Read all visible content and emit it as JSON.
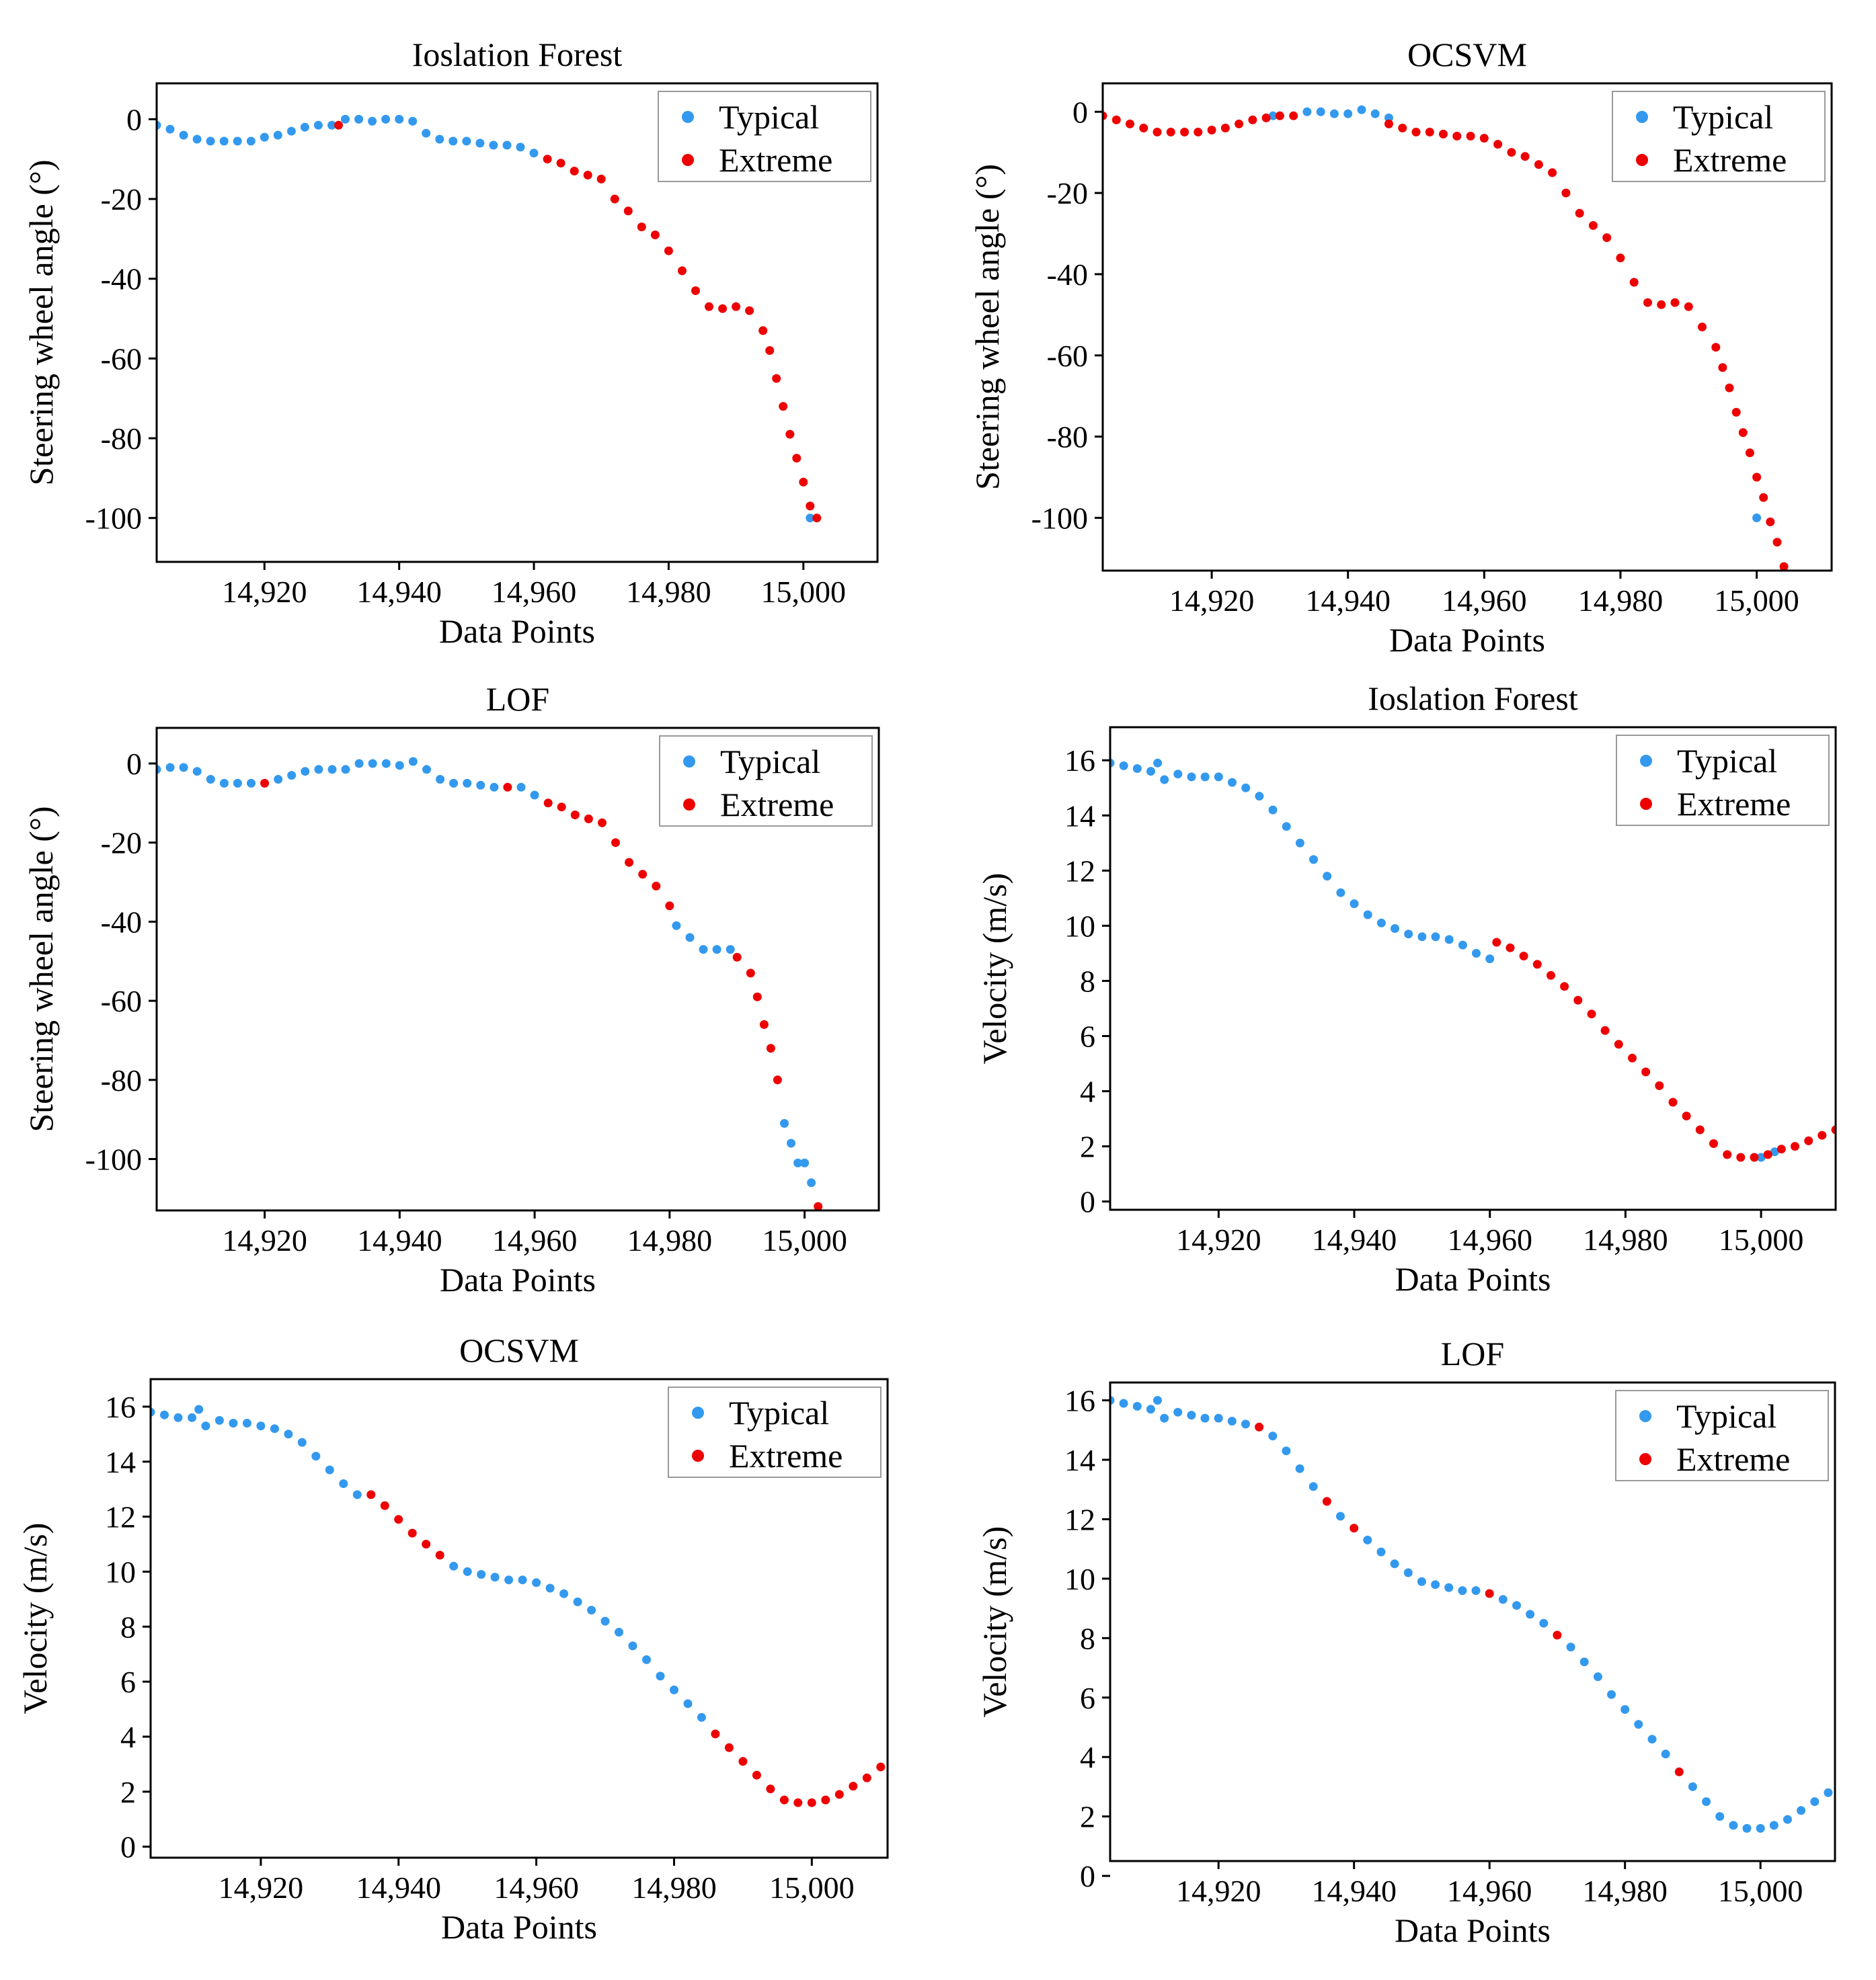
{
  "colors": {
    "typical": "#3399ee",
    "extreme": "#ee0000"
  },
  "chart_data": [
    {
      "type": "scatter",
      "title": "Ioslation Forest",
      "xlabel": "Data Points",
      "ylabel": "Steering wheel angle (°)",
      "xlim": [
        14904,
        15011
      ],
      "ylim": [
        -111,
        9
      ],
      "xticks": [
        14920,
        14940,
        14960,
        14980,
        15000
      ],
      "xtick_labels": [
        "14,920",
        "14,940",
        "14,960",
        "14,980",
        "15,000"
      ],
      "yticks": [
        0,
        -20,
        -40,
        -60,
        -80,
        -100
      ],
      "ytick_labels": [
        "0",
        "-20",
        "-40",
        "-60",
        "-80",
        "-100"
      ],
      "legend": {
        "position": "top-right",
        "entries": [
          "Typical",
          "Extreme"
        ]
      },
      "series": [
        {
          "name": "Typical",
          "x": [
            14904,
            14906,
            14908,
            14910,
            14912,
            14914,
            14916,
            14918,
            14920,
            14922,
            14924,
            14926,
            14928,
            14930,
            14932,
            14934,
            14936,
            14938,
            14940,
            14942,
            14944,
            14946,
            14948,
            14950,
            14952,
            14954,
            14956,
            14958,
            14960,
            15001
          ],
          "y": [
            -1.5,
            -2.5,
            -4,
            -5,
            -5.5,
            -5.5,
            -5.5,
            -5.5,
            -4.5,
            -4,
            -3,
            -2,
            -1.5,
            -1.5,
            0,
            0,
            -0.5,
            0,
            0,
            -0.5,
            -3.5,
            -5,
            -5.5,
            -5.5,
            -6,
            -6.5,
            -6.5,
            -7,
            -8.5,
            -100
          ]
        },
        {
          "name": "Extreme",
          "x": [
            14931,
            14962,
            14964,
            14966,
            14968,
            14970,
            14972,
            14974,
            14976,
            14978,
            14980,
            14982,
            14984,
            14986,
            14988,
            14990,
            14992,
            14994,
            14995,
            14996,
            14997,
            14998,
            14999,
            15000,
            15001,
            15002
          ],
          "y": [
            -1.5,
            -10,
            -11,
            -13,
            -14,
            -15,
            -20,
            -23,
            -27,
            -29,
            -33,
            -38,
            -43,
            -47,
            -47.5,
            -47,
            -48,
            -53,
            -58,
            -65,
            -72,
            -79,
            -85,
            -91,
            -97,
            -100
          ]
        }
      ]
    },
    {
      "type": "scatter",
      "title": "OCSVM",
      "xlabel": "Data Points",
      "ylabel": "Steering wheel angle (°)",
      "xlim": [
        14904,
        15011
      ],
      "ylim": [
        -113,
        7
      ],
      "xticks": [
        14920,
        14940,
        14960,
        14980,
        15000
      ],
      "xtick_labels": [
        "14,920",
        "14,940",
        "14,960",
        "14,980",
        "15,000"
      ],
      "yticks": [
        0,
        -20,
        -40,
        -60,
        -80,
        -100
      ],
      "ytick_labels": [
        "0",
        "-20",
        "-40",
        "-60",
        "-80",
        "-100"
      ],
      "legend": {
        "position": "top-right",
        "entries": [
          "Typical",
          "Extreme"
        ]
      },
      "series": [
        {
          "name": "Typical",
          "x": [
            14929,
            14934,
            14936,
            14938,
            14940,
            14942,
            14944,
            14946,
            15000
          ],
          "y": [
            -1,
            0,
            0,
            -0.5,
            -0.5,
            0.5,
            -0.5,
            -1.5,
            -100
          ]
        },
        {
          "name": "Extreme",
          "x": [
            14904,
            14906,
            14908,
            14910,
            14912,
            14914,
            14916,
            14918,
            14920,
            14922,
            14924,
            14926,
            14928,
            14930,
            14932,
            14946,
            14948,
            14950,
            14952,
            14954,
            14956,
            14958,
            14960,
            14962,
            14964,
            14966,
            14968,
            14970,
            14972,
            14974,
            14976,
            14978,
            14980,
            14982,
            14984,
            14986,
            14988,
            14990,
            14992,
            14994,
            14995,
            14996,
            14997,
            14998,
            14999,
            15000,
            15001,
            15002,
            15003,
            15004
          ],
          "y": [
            -1,
            -2,
            -3,
            -4,
            -5,
            -5,
            -5,
            -5,
            -4.5,
            -4,
            -3,
            -2,
            -1.5,
            -1,
            -1,
            -3,
            -4,
            -5,
            -5,
            -5.5,
            -6,
            -6,
            -6.5,
            -8,
            -10,
            -11,
            -13,
            -15,
            -20,
            -25,
            -28,
            -31,
            -36,
            -42,
            -47,
            -47.5,
            -47,
            -48,
            -53,
            -58,
            -63,
            -68,
            -74,
            -79,
            -84,
            -90,
            -95,
            -101,
            -106,
            -112
          ]
        }
      ]
    },
    {
      "type": "scatter",
      "title": "LOF",
      "xlabel": "Data Points",
      "ylabel": "Steering wheel angle (°)",
      "xlim": [
        14904,
        15011
      ],
      "ylim": [
        -113,
        9
      ],
      "xticks": [
        14920,
        14940,
        14960,
        14980,
        15000
      ],
      "xtick_labels": [
        "14,920",
        "14,940",
        "14,960",
        "14,980",
        "15,000"
      ],
      "yticks": [
        0,
        -20,
        -40,
        -60,
        -80,
        -100
      ],
      "ytick_labels": [
        "0",
        "-20",
        "-40",
        "-60",
        "-80",
        "-100"
      ],
      "legend": {
        "position": "top-right",
        "entries": [
          "Typical",
          "Extreme"
        ]
      },
      "series": [
        {
          "name": "Typical",
          "x": [
            14904,
            14906,
            14908,
            14910,
            14912,
            14914,
            14916,
            14918,
            14922,
            14924,
            14926,
            14928,
            14930,
            14932,
            14934,
            14936,
            14938,
            14940,
            14942,
            14944,
            14946,
            14948,
            14950,
            14952,
            14954,
            14958,
            14960,
            14981,
            14983,
            14985,
            14987,
            14989,
            14997,
            14998,
            14999,
            15000,
            15001
          ],
          "y": [
            -1.5,
            -1,
            -1,
            -2,
            -4,
            -5,
            -5,
            -5,
            -4,
            -3,
            -2,
            -1.5,
            -1.5,
            -1.5,
            0,
            0,
            0,
            -0.5,
            0.5,
            -1.5,
            -4,
            -5,
            -5,
            -5.5,
            -6,
            -6,
            -8,
            -41,
            -44,
            -47,
            -47,
            -47,
            -91,
            -96,
            -101,
            -101,
            -106
          ]
        },
        {
          "name": "Extreme",
          "x": [
            14920,
            14956,
            14962,
            14964,
            14966,
            14968,
            14970,
            14972,
            14974,
            14976,
            14978,
            14980,
            14990,
            14992,
            14993,
            14994,
            14995,
            14996,
            15002
          ],
          "y": [
            -5,
            -6,
            -10,
            -11,
            -13,
            -14,
            -15,
            -20,
            -25,
            -28,
            -31,
            -36,
            -49,
            -53,
            -59,
            -66,
            -72,
            -80,
            -112
          ]
        }
      ]
    },
    {
      "type": "scatter",
      "title": "Ioslation Forest",
      "xlabel": "Data Points",
      "ylabel": "Velocity (m/s)",
      "xlim": [
        14904,
        15011
      ],
      "ylim": [
        -0.3,
        17.2
      ],
      "xticks": [
        14920,
        14940,
        14960,
        14980,
        15000
      ],
      "xtick_labels": [
        "14,920",
        "14,940",
        "14,960",
        "14,980",
        "15,000"
      ],
      "yticks": [
        0,
        2,
        4,
        6,
        8,
        10,
        12,
        14,
        16
      ],
      "ytick_labels": [
        "0",
        "2",
        "4",
        "6",
        "8",
        "10",
        "12",
        "14",
        "16"
      ],
      "legend": {
        "position": "top-right",
        "entries": [
          "Typical",
          "Extreme"
        ]
      },
      "series": [
        {
          "name": "Typical",
          "x": [
            14904,
            14906,
            14908,
            14910,
            14911,
            14912,
            14914,
            14916,
            14918,
            14920,
            14922,
            14924,
            14926,
            14928,
            14930,
            14932,
            14934,
            14936,
            14938,
            14940,
            14942,
            14944,
            14946,
            14948,
            14950,
            14952,
            14954,
            14956,
            14958,
            14960,
            15000,
            15002
          ],
          "y": [
            15.9,
            15.8,
            15.7,
            15.6,
            15.9,
            15.3,
            15.5,
            15.4,
            15.4,
            15.4,
            15.2,
            15,
            14.7,
            14.2,
            13.6,
            13,
            12.4,
            11.8,
            11.2,
            10.8,
            10.4,
            10.1,
            9.9,
            9.7,
            9.6,
            9.6,
            9.5,
            9.3,
            9.0,
            8.8,
            1.6,
            1.8
          ]
        },
        {
          "name": "Extreme",
          "x": [
            14961,
            14963,
            14965,
            14967,
            14969,
            14971,
            14973,
            14975,
            14977,
            14979,
            14981,
            14983,
            14985,
            14987,
            14989,
            14991,
            14993,
            14995,
            14997,
            14999,
            15001,
            15003,
            15005,
            15007,
            15009,
            15011
          ],
          "y": [
            9.4,
            9.2,
            8.9,
            8.6,
            8.2,
            7.8,
            7.3,
            6.8,
            6.2,
            5.7,
            5.2,
            4.7,
            4.2,
            3.6,
            3.1,
            2.6,
            2.1,
            1.7,
            1.6,
            1.6,
            1.7,
            1.9,
            2.0,
            2.2,
            2.4,
            2.6
          ]
        }
      ]
    },
    {
      "type": "scatter",
      "title": "OCSVM",
      "xlabel": "Data Points",
      "ylabel": "Velocity (m/s)",
      "xlim": [
        14904,
        15011
      ],
      "ylim": [
        -0.4,
        17.0
      ],
      "xticks": [
        14920,
        14940,
        14960,
        14980,
        15000
      ],
      "xtick_labels": [
        "14,920",
        "14,940",
        "14,960",
        "14,980",
        "15,000"
      ],
      "yticks": [
        0,
        2,
        4,
        6,
        8,
        10,
        12,
        14,
        16
      ],
      "ytick_labels": [
        "0",
        "2",
        "4",
        "6",
        "8",
        "10",
        "12",
        "14",
        "16"
      ],
      "legend": {
        "position": "top-right",
        "entries": [
          "Typical",
          "Extreme"
        ]
      },
      "series": [
        {
          "name": "Typical",
          "x": [
            14904,
            14906,
            14908,
            14910,
            14911,
            14912,
            14914,
            14916,
            14918,
            14920,
            14922,
            14924,
            14926,
            14928,
            14930,
            14932,
            14934,
            14948,
            14950,
            14952,
            14954,
            14956,
            14958,
            14960,
            14962,
            14964,
            14966,
            14968,
            14970,
            14972,
            14974,
            14976,
            14978,
            14980,
            14982,
            14984
          ],
          "y": [
            15.8,
            15.7,
            15.6,
            15.6,
            15.9,
            15.3,
            15.5,
            15.4,
            15.4,
            15.3,
            15.2,
            15,
            14.7,
            14.2,
            13.7,
            13.2,
            12.8,
            10.2,
            10,
            9.9,
            9.8,
            9.7,
            9.7,
            9.6,
            9.4,
            9.2,
            8.9,
            8.6,
            8.2,
            7.8,
            7.3,
            6.8,
            6.2,
            5.7,
            5.2,
            4.7
          ]
        },
        {
          "name": "Extreme",
          "x": [
            14936,
            14938,
            14940,
            14942,
            14944,
            14946,
            14986,
            14988,
            14990,
            14992,
            14994,
            14996,
            14998,
            15000,
            15002,
            15004,
            15006,
            15008,
            15010
          ],
          "y": [
            12.8,
            12.4,
            11.9,
            11.4,
            11.0,
            10.6,
            4.1,
            3.6,
            3.1,
            2.6,
            2.1,
            1.7,
            1.6,
            1.6,
            1.7,
            1.9,
            2.2,
            2.5,
            2.9
          ]
        }
      ]
    },
    {
      "type": "scatter",
      "title": "LOF",
      "xlabel": "Data Points",
      "ylabel": "Velocity (m/s)",
      "xlim": [
        14904,
        15011
      ],
      "ylim": [
        0.5,
        16.6
      ],
      "xticks": [
        14920,
        14940,
        14960,
        14980,
        15000
      ],
      "xtick_labels": [
        "14,920",
        "14,940",
        "14,960",
        "14,980",
        "15,000"
      ],
      "yticks": [
        0,
        2,
        4,
        6,
        8,
        10,
        12,
        14,
        16
      ],
      "ytick_labels": [
        "0",
        "2",
        "4",
        "6",
        "8",
        "10",
        "12",
        "14",
        "16"
      ],
      "legend": {
        "position": "top-right",
        "entries": [
          "Typical",
          "Extreme"
        ]
      },
      "series": [
        {
          "name": "Typical",
          "x": [
            14904,
            14906,
            14908,
            14910,
            14911,
            14912,
            14914,
            14916,
            14918,
            14920,
            14922,
            14924,
            14928,
            14930,
            14932,
            14934,
            14938,
            14942,
            14944,
            14946,
            14948,
            14950,
            14952,
            14954,
            14956,
            14958,
            14962,
            14964,
            14966,
            14968,
            14972,
            14974,
            14976,
            14978,
            14980,
            14982,
            14984,
            14986,
            14990,
            14992,
            14994,
            14996,
            14998,
            15000,
            15002,
            15004,
            15006,
            15008,
            15010
          ],
          "y": [
            16,
            15.9,
            15.8,
            15.7,
            16,
            15.4,
            15.6,
            15.5,
            15.4,
            15.4,
            15.3,
            15.2,
            14.8,
            14.3,
            13.7,
            13.1,
            12.1,
            11.3,
            10.9,
            10.5,
            10.2,
            9.9,
            9.8,
            9.7,
            9.6,
            9.6,
            9.3,
            9.1,
            8.8,
            8.5,
            7.7,
            7.2,
            6.7,
            6.1,
            5.6,
            5.1,
            4.6,
            4.1,
            3.0,
            2.5,
            2.0,
            1.7,
            1.6,
            1.6,
            1.7,
            1.9,
            2.2,
            2.5,
            2.8
          ]
        },
        {
          "name": "Extreme",
          "x": [
            14926,
            14936,
            14940,
            14960,
            14970,
            14988
          ],
          "y": [
            15.1,
            12.6,
            11.7,
            9.5,
            8.1,
            3.5
          ]
        }
      ]
    }
  ]
}
